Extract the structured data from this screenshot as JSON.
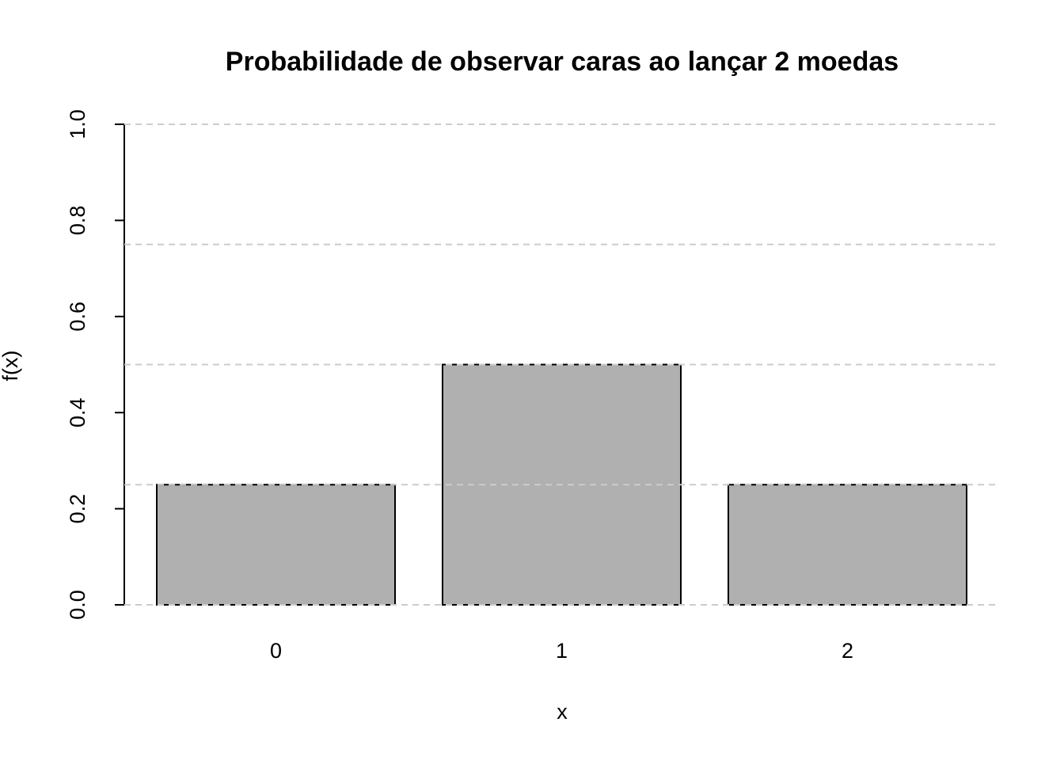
{
  "chart_data": {
    "type": "bar",
    "title": "Probabilidade de observar caras ao lançar 2 moedas",
    "x_label": "x",
    "y_label": "f(x)",
    "categories": [
      "0",
      "1",
      "2"
    ],
    "values": [
      0.25,
      0.5,
      0.25
    ],
    "color": "#b0b0b0",
    "ylim": [
      0,
      1
    ],
    "yticks": [
      {
        "value": 0,
        "label": "0.0"
      },
      0.2,
      0.4,
      0.6,
      0.8,
      {
        "value": 1,
        "label": "1.0"
      }
    ],
    "grid": true,
    "grid_lines": [
      0,
      0.25,
      0.5,
      0.75,
      1
    ],
    "grid_color": "#cccccc"
  }
}
